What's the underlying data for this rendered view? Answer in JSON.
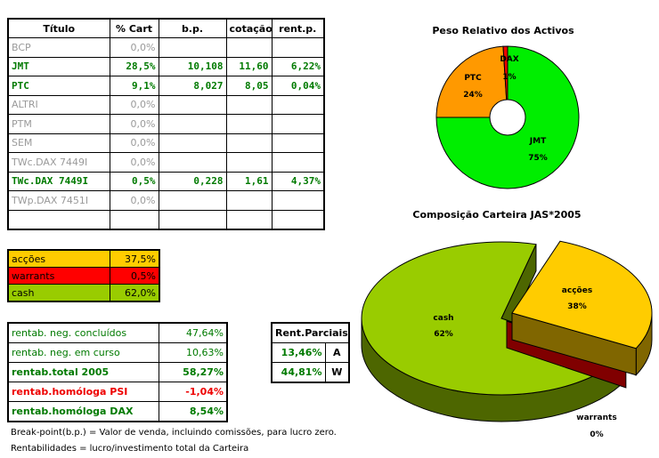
{
  "main_table": {
    "headers": [
      "Título",
      "% Cart",
      "b.p.",
      "cotação",
      "rent.p."
    ],
    "rows": [
      {
        "titulo": "BCP",
        "cart": "0,0%",
        "bp": "",
        "cotacao": "",
        "rent": "",
        "active": false
      },
      {
        "titulo": "JMT",
        "cart": "28,5%",
        "bp": "10,108",
        "cotacao": "11,60",
        "rent": "6,22%",
        "active": true
      },
      {
        "titulo": "PTC",
        "cart": "9,1%",
        "bp": "8,027",
        "cotacao": "8,05",
        "rent": "0,04%",
        "active": true
      },
      {
        "titulo": "ALTRI",
        "cart": "0,0%",
        "bp": "",
        "cotacao": "",
        "rent": "",
        "active": false
      },
      {
        "titulo": "PTM",
        "cart": "0,0%",
        "bp": "",
        "cotacao": "",
        "rent": "",
        "active": false
      },
      {
        "titulo": "SEM",
        "cart": "0,0%",
        "bp": "",
        "cotacao": "",
        "rent": "",
        "active": false
      },
      {
        "titulo": "TWc.DAX 7449I",
        "cart": "0,0%",
        "bp": "",
        "cotacao": "",
        "rent": "",
        "active": false
      },
      {
        "titulo": "TWc.DAX 7449I",
        "cart": "0,5%",
        "bp": "0,228",
        "cotacao": "1,61",
        "rent": "4,37%",
        "active": true
      },
      {
        "titulo": "TWp.DAX 7451I",
        "cart": "0,0%",
        "bp": "",
        "cotacao": "",
        "rent": "",
        "active": false
      },
      {
        "titulo": "",
        "cart": "",
        "bp": "",
        "cotacao": "",
        "rent": "",
        "active": false
      }
    ]
  },
  "allocation": [
    {
      "label": "acções",
      "value": "37,5%",
      "color": "#ffcc00"
    },
    {
      "label": "warrants",
      "value": "0,5%",
      "color": "#ff0000"
    },
    {
      "label": "cash",
      "value": "62,0%",
      "color": "#99cc00"
    }
  ],
  "rentab": [
    {
      "label": "rentab. neg. concluídos",
      "value": "47,64%",
      "style": "rg-plain"
    },
    {
      "label": "rentab. neg. em curso",
      "value": "10,63%",
      "style": "rg-plain"
    },
    {
      "label": "rentab.total 2005",
      "value": "58,27%",
      "style": "rg-bold"
    },
    {
      "label": "rentab.homóloga PSI",
      "value": "-1,04%",
      "style": "rr-bold"
    },
    {
      "label": "rentab.homóloga DAX",
      "value": "8,54%",
      "style": "rg-bold"
    }
  ],
  "rent_parciais": {
    "header": "Rent.Parciais",
    "rows": [
      {
        "value": "13,46%",
        "code": "A"
      },
      {
        "value": "44,81%",
        "code": "W"
      }
    ]
  },
  "notes": [
    "Break-point(b.p.) = Valor de venda, incluindo comissões, para lucro zero.",
    "Rentabilidades = lucro/investimento total da Carteira"
  ],
  "chart_data": [
    {
      "type": "pie",
      "variant": "doughnut",
      "title": "Peso Relativo dos Activos",
      "categories": [
        "JMT",
        "PTC",
        "DAX"
      ],
      "values": [
        75,
        24,
        1
      ],
      "labels": [
        "75%",
        "24%",
        "1%"
      ],
      "colors": [
        "#00ee00",
        "#ff9900",
        "#ee0000"
      ],
      "legend": "none"
    },
    {
      "type": "pie",
      "variant": "3d-exploded",
      "title": "Composição Carteira JAS*2005",
      "categories": [
        "acções",
        "warrants",
        "cash"
      ],
      "values": [
        38,
        0,
        62
      ],
      "labels": [
        "38%",
        "0%",
        "62%"
      ],
      "colors": [
        "#ffcc00",
        "#ff0000",
        "#99cc00"
      ],
      "legend": "none"
    }
  ]
}
